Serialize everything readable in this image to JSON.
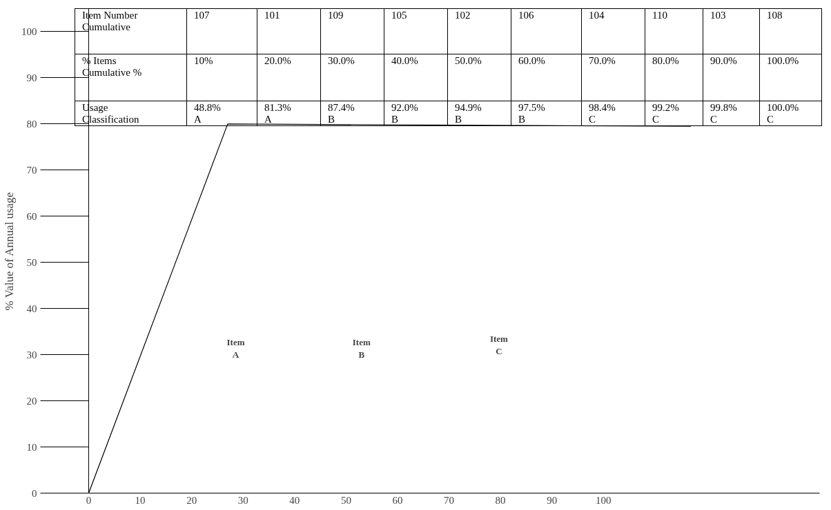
{
  "chart_data": {
    "type": "line",
    "ylabel": "% Value of Annual usage",
    "x": [
      0,
      27,
      117
    ],
    "series": [
      {
        "color": "#000000",
        "values": [
          0,
          80,
          79.5
        ]
      }
    ],
    "xlim": [
      0,
      142
    ],
    "ylim": [
      0,
      105
    ],
    "xticks": [
      0,
      10,
      20,
      30,
      40,
      50,
      60,
      70,
      80,
      90,
      100
    ],
    "yticks": [
      0,
      10,
      20,
      30,
      40,
      50,
      60,
      70,
      80,
      90,
      100
    ],
    "grid": false,
    "marker": "none",
    "line_style": "solid",
    "annotations": [
      "Item Number\nCumulative",
      "107",
      "101",
      "109",
      "105",
      "102",
      "106",
      "104",
      "110",
      "103",
      "108",
      "% Items\nCumulative %",
      "10%",
      "20.0%",
      "30.0%",
      "40.0%",
      "50.0%",
      "60.0%",
      "70.0%",
      "80.0%",
      "90.0%",
      "100.0%",
      "Usage\nClassification",
      "48.8%\nA",
      "81.3%\nA",
      "87.4%\nB",
      "92.0%\nB",
      "94.9%\nB",
      "97.5%\nB",
      "98.4%\nC",
      "99.2%\nC",
      "99.8%\nC",
      "100.0%\nC",
      "Item\nA",
      "Item\nB",
      "Item\nC"
    ]
  }
}
